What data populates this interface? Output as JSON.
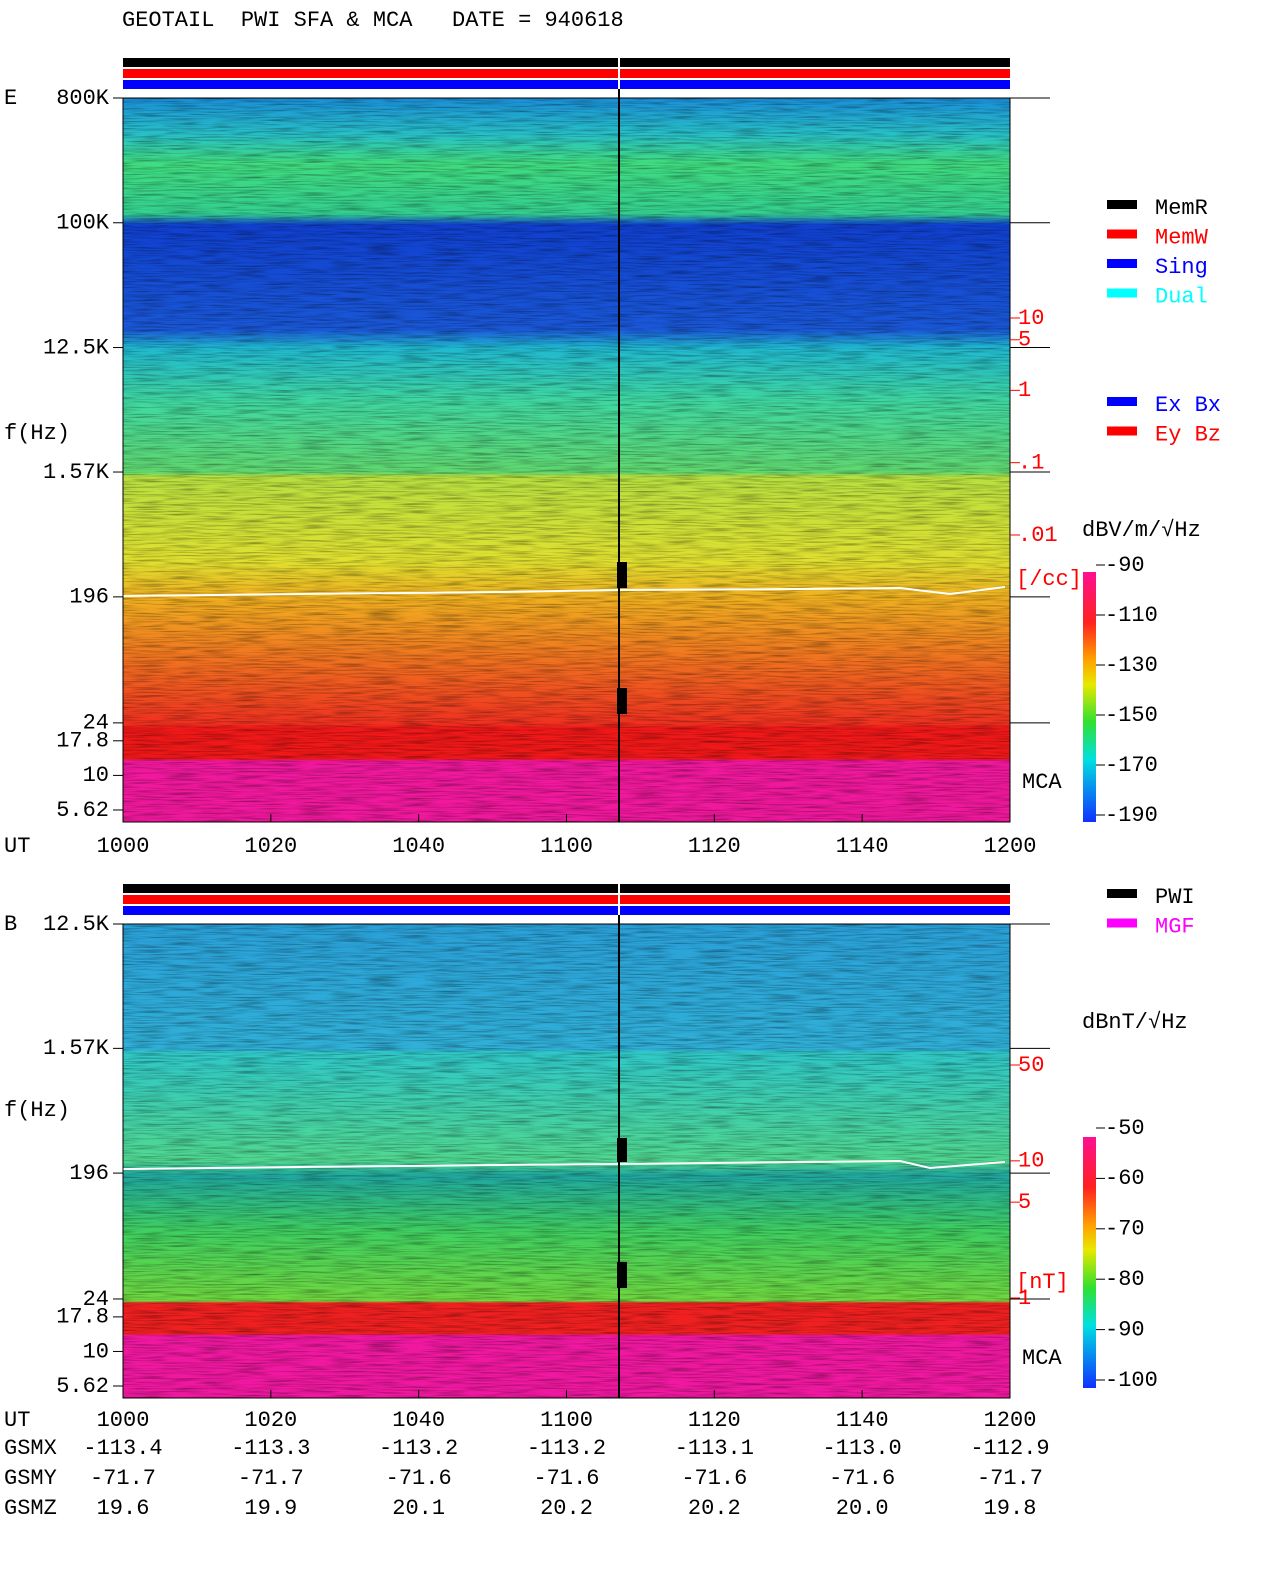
{
  "chart_data": [
    {
      "type": "spectrogram",
      "title": "GEOTAIL  PWI SFA & MCA   DATE = 940618",
      "label": "E",
      "ylabel": "f(Hz)",
      "yscale": "log",
      "ylim": [
        4.6,
        800000
      ],
      "yticks": [
        {
          "value": 800000,
          "label": "800K"
        },
        {
          "value": 100000,
          "label": "100K"
        },
        {
          "value": 12500,
          "label": "12.5K"
        },
        {
          "value": 1570,
          "label": "1.57K"
        },
        196,
        24,
        17.8,
        10,
        5.62
      ],
      "mca_label": "MCA",
      "xlabel": "UT",
      "xticks": [
        "1000",
        "1020",
        "1040",
        "1100",
        "1120",
        "1140",
        "1200"
      ],
      "aux_axis": {
        "color": "#ff0000",
        "scale": "log",
        "lim": [
          0.01,
          10
        ],
        "ticks": [
          10,
          5,
          1,
          {
            "value": 0.1,
            "label": ".1"
          },
          {
            "value": 0.01,
            "label": ".01"
          }
        ],
        "unit": "[/cc]"
      },
      "colorbar": {
        "unit": "dBV/m/√Hz",
        "clim": [
          -190,
          -90
        ],
        "ticks": [
          -90,
          -110,
          -130,
          -150,
          -170,
          -190
        ]
      },
      "legends": [
        [
          {
            "name": "MemR",
            "color": "#000000"
          },
          {
            "name": "MemW",
            "color": "#ff0000"
          },
          {
            "name": "Sing",
            "color": "#0000ff"
          },
          {
            "name": "Dual",
            "color": "#00ffff"
          }
        ],
        [
          {
            "name": "Ex Bx",
            "color": "#0000ff"
          },
          {
            "name": "Ey Bz",
            "color": "#ff0000"
          }
        ]
      ]
    },
    {
      "type": "spectrogram",
      "label": "B",
      "ylabel": "f(Hz)",
      "yscale": "log",
      "ylim": [
        4.6,
        12500
      ],
      "yticks": [
        {
          "value": 12500,
          "label": "12.5K"
        },
        {
          "value": 1570,
          "label": "1.57K"
        },
        196,
        24,
        17.8,
        10,
        5.62
      ],
      "mca_label": "MCA",
      "xlabel": "UT",
      "xticks": [
        "1000",
        "1020",
        "1040",
        "1100",
        "1120",
        "1140",
        "1200"
      ],
      "aux_axis": {
        "color": "#ff0000",
        "scale": "log",
        "lim": [
          1,
          50
        ],
        "ticks": [
          50,
          10,
          5,
          1
        ],
        "unit": "[nT]"
      },
      "colorbar": {
        "unit": "dBnT/√Hz",
        "clim": [
          -100,
          -50
        ],
        "ticks": [
          -50,
          -60,
          -70,
          -80,
          -90,
          -100
        ]
      },
      "legends": [
        [
          {
            "name": "PWI",
            "color": "#000000"
          },
          {
            "name": "MGF",
            "color": "#ff00ff"
          }
        ]
      ],
      "orbit": [
        {
          "label": "GSMX",
          "values": [
            "-113.4",
            "-113.3",
            "-113.2",
            "-113.2",
            "-113.1",
            "-113.0",
            "-112.9"
          ]
        },
        {
          "label": "GSMY",
          "values": [
            "-71.7",
            "-71.7",
            "-71.6",
            "-71.6",
            "-71.6",
            "-71.6",
            "-71.7"
          ]
        },
        {
          "label": "GSMZ",
          "values": [
            "19.6",
            "19.9",
            "20.1",
            "20.2",
            "20.2",
            "20.0",
            "19.8"
          ]
        }
      ]
    }
  ]
}
